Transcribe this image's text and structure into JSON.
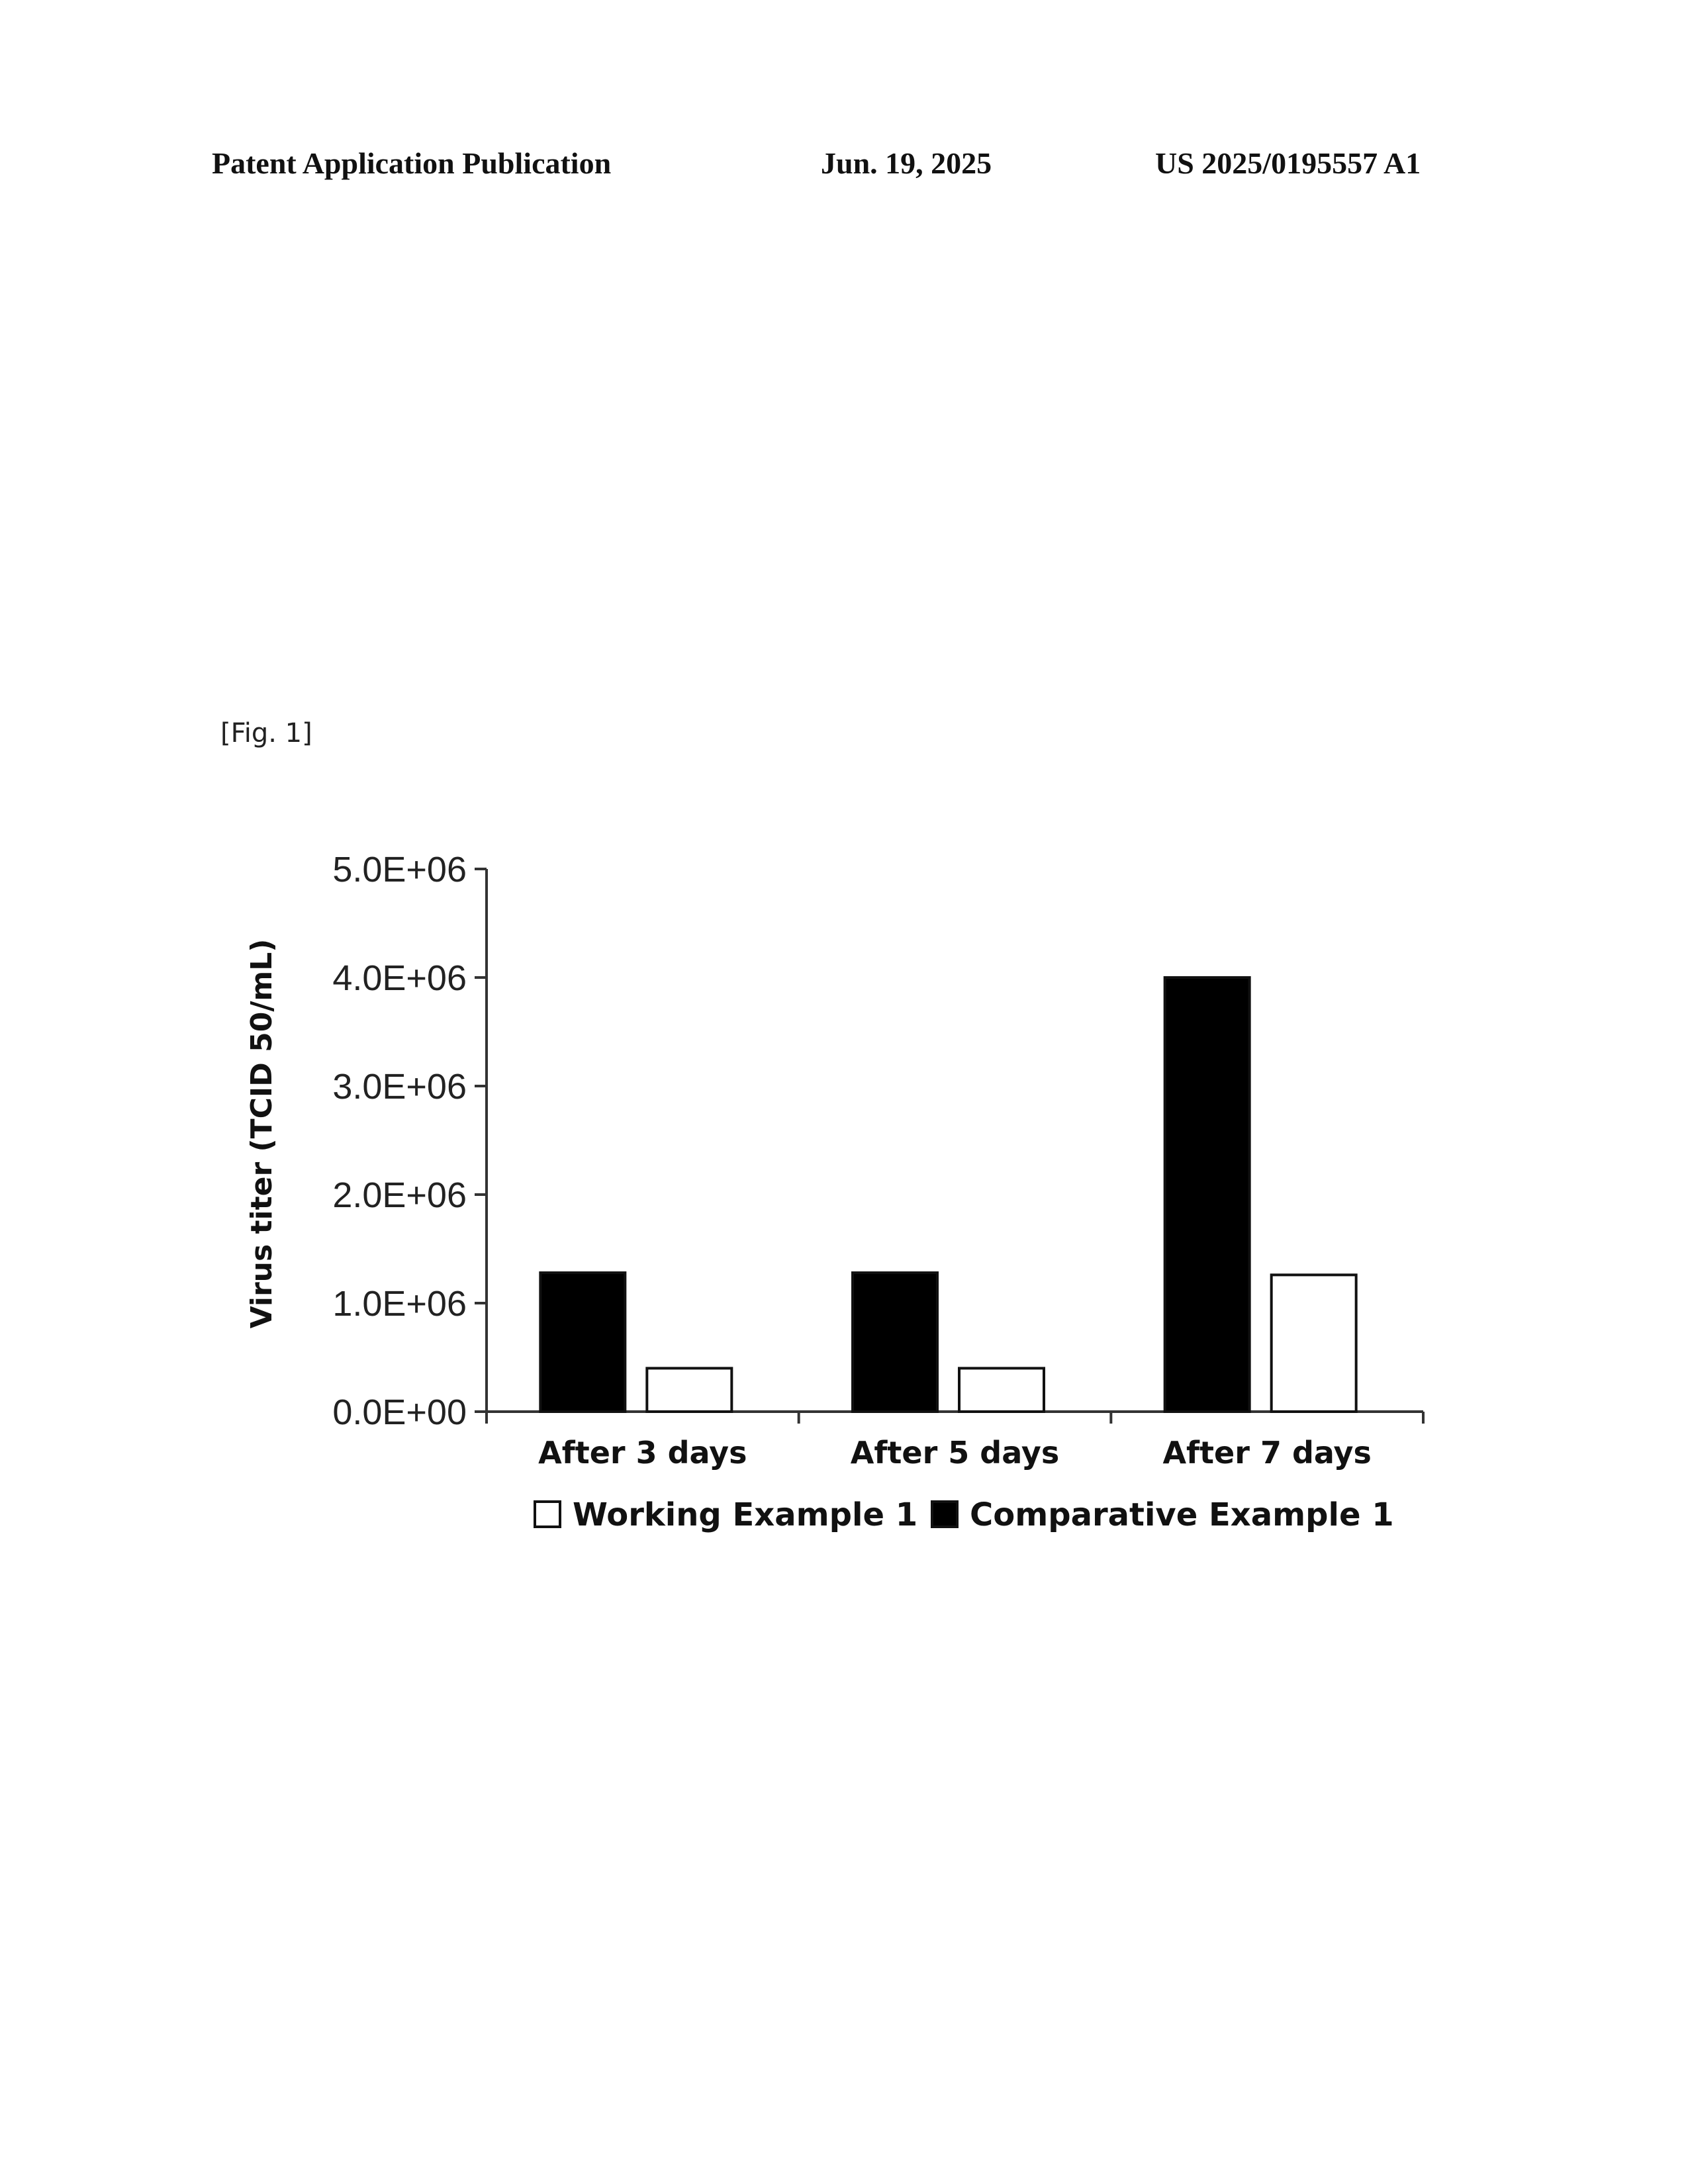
{
  "header": {
    "left": "Patent Application Publication",
    "date": "Jun. 19, 2025",
    "number": "US 2025/0195557 A1"
  },
  "figure": {
    "label": "[Fig. 1]"
  },
  "chart_data": {
    "type": "bar",
    "title": "",
    "xlabel": "",
    "ylabel": "Virus titer (TCID 50/mL)",
    "ylim": [
      0,
      5000000
    ],
    "yticks": [
      0,
      1000000,
      2000000,
      3000000,
      4000000,
      5000000
    ],
    "ytick_labels": [
      "0.0E+00",
      "1.0E+06",
      "2.0E+06",
      "3.0E+06",
      "4.0E+06",
      "5.0E+06"
    ],
    "categories": [
      "After 3 days",
      "After 5 days",
      "After 7 days"
    ],
    "series": [
      {
        "name": "Comparative Example 1",
        "color": "#000000",
        "values": [
          1280000,
          1280000,
          4000000
        ]
      },
      {
        "name": "Working Example 1",
        "color": "#ffffff",
        "values": [
          400000,
          400000,
          1260000
        ]
      }
    ],
    "legend": {
      "position": "bottom",
      "entries": [
        {
          "label": "Working Example 1",
          "color": "#ffffff"
        },
        {
          "label": "Comparative Example 1",
          "color": "#000000"
        }
      ]
    },
    "grid": false
  }
}
